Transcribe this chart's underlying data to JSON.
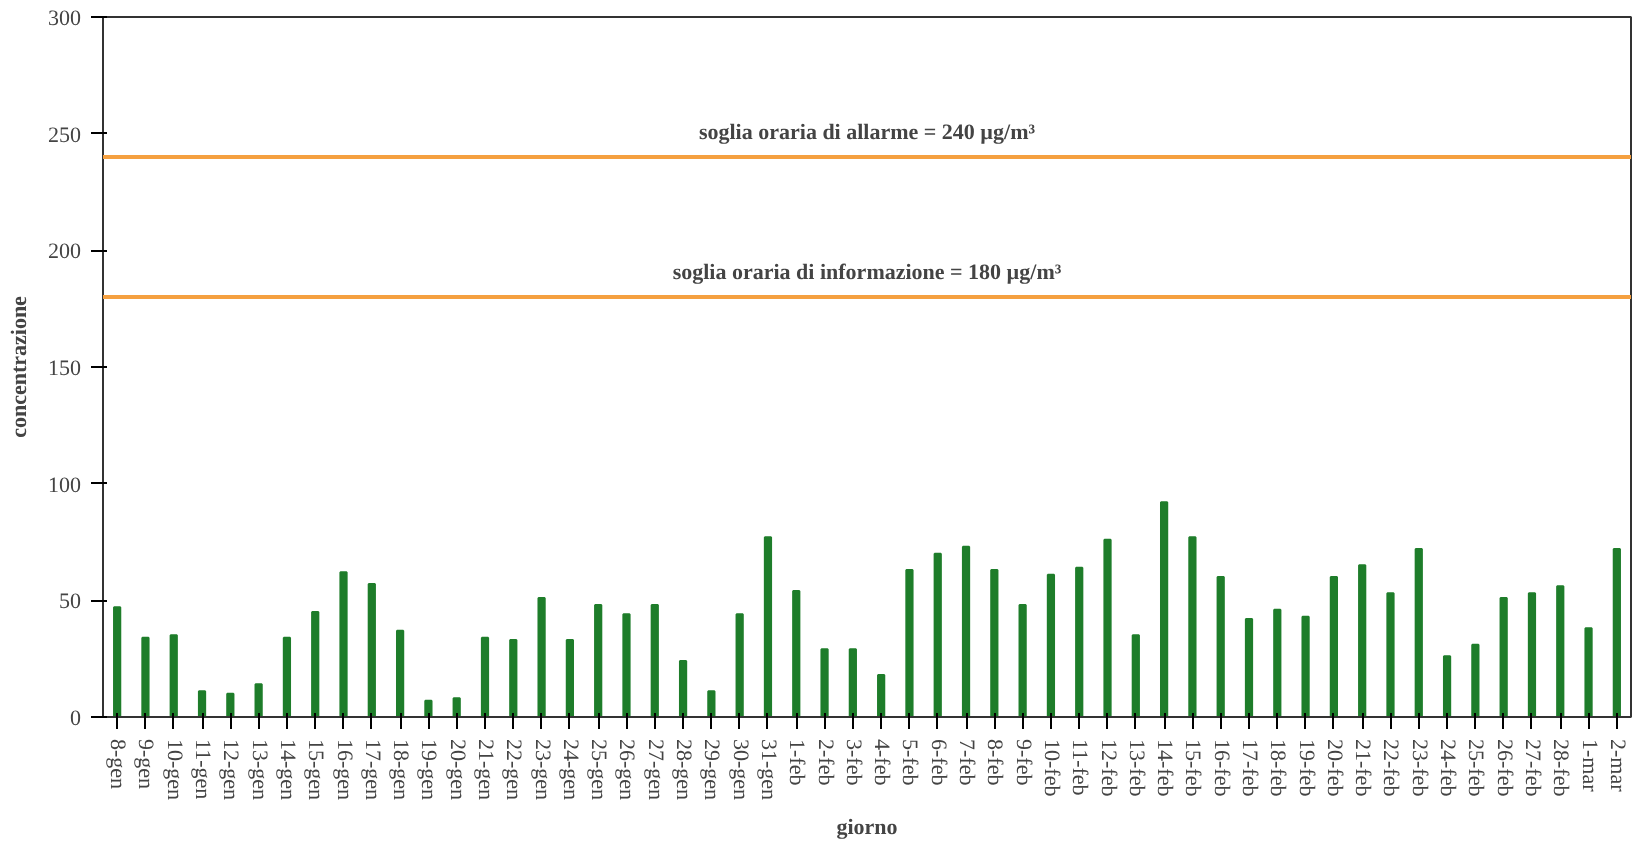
{
  "chart_data": {
    "type": "bar",
    "xlabel": "giorno",
    "ylabel": "concentrazione",
    "categories": [
      "8-gen",
      "9-gen",
      "10-gen",
      "11-gen",
      "12-gen",
      "13-gen",
      "14-gen",
      "15-gen",
      "16-gen",
      "17-gen",
      "18-gen",
      "19-gen",
      "20-gen",
      "21-gen",
      "22-gen",
      "23-gen",
      "24-gen",
      "25-gen",
      "26-gen",
      "27-gen",
      "28-gen",
      "29-gen",
      "30-gen",
      "31-gen",
      "1-feb",
      "2-feb",
      "3-feb",
      "4-feb",
      "5-feb",
      "6-feb",
      "7-feb",
      "8-feb",
      "9-feb",
      "10-feb",
      "11-feb",
      "12-feb",
      "13-feb",
      "14-feb",
      "15-feb",
      "16-feb",
      "17-feb",
      "18-feb",
      "19-feb",
      "20-feb",
      "21-feb",
      "22-feb",
      "23-feb",
      "24-feb",
      "25-feb",
      "26-feb",
      "27-feb",
      "28-feb",
      "1-mar",
      "2-mar"
    ],
    "values": [
      47,
      34,
      35,
      11,
      10,
      14,
      34,
      45,
      62,
      57,
      37,
      7,
      8,
      34,
      33,
      51,
      33,
      48,
      44,
      48,
      24,
      11,
      44,
      77,
      54,
      29,
      29,
      18,
      63,
      70,
      73,
      63,
      48,
      61,
      64,
      76,
      35,
      92,
      77,
      60,
      42,
      46,
      43,
      60,
      65,
      53,
      72,
      26,
      31,
      51,
      53,
      56,
      38,
      72
    ],
    "color": "#1e7d2a",
    "ylim": [
      0,
      300
    ],
    "yticks": [
      0,
      50,
      100,
      150,
      200,
      250,
      300
    ],
    "grid": false,
    "ref_lines": [
      {
        "axis": "y",
        "value": 240,
        "label": "soglia oraria di allarme = 240 µg/m³",
        "color": "#f5a040"
      },
      {
        "axis": "y",
        "value": 180,
        "label": "soglia oraria di informazione = 180 µg/m³",
        "color": "#f5a040"
      }
    ]
  }
}
